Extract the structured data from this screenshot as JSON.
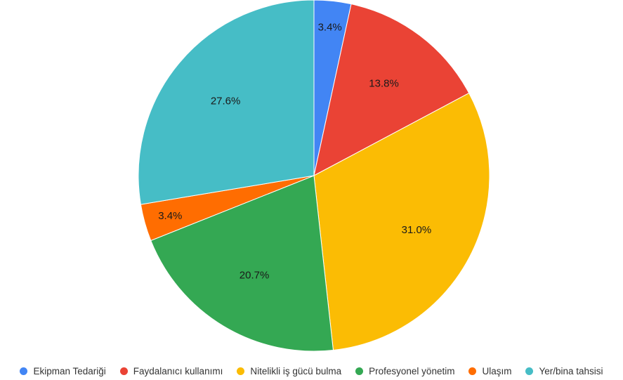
{
  "chart_data": {
    "type": "pie",
    "title": "",
    "legend_position": "bottom",
    "slices": [
      {
        "label": "Ekipman Tedariği",
        "value": 3.4,
        "display": "3.4%",
        "color": "#4285f4"
      },
      {
        "label": "Faydalanıcı kullanımı",
        "value": 13.8,
        "display": "13.8%",
        "color": "#ea4335"
      },
      {
        "label": "Nitelikli iş gücü bulma",
        "value": 31.0,
        "display": "31.0%",
        "color": "#fbbc04"
      },
      {
        "label": "Profesyonel yönetim",
        "value": 20.7,
        "display": "20.7%",
        "color": "#34a853"
      },
      {
        "label": "Ulaşım",
        "value": 3.4,
        "display": "3.4%",
        "color": "#ff6d01"
      },
      {
        "label": "Yer/bina tahsisi",
        "value": 27.6,
        "display": "27.6%",
        "color": "#46bdc6"
      }
    ]
  }
}
